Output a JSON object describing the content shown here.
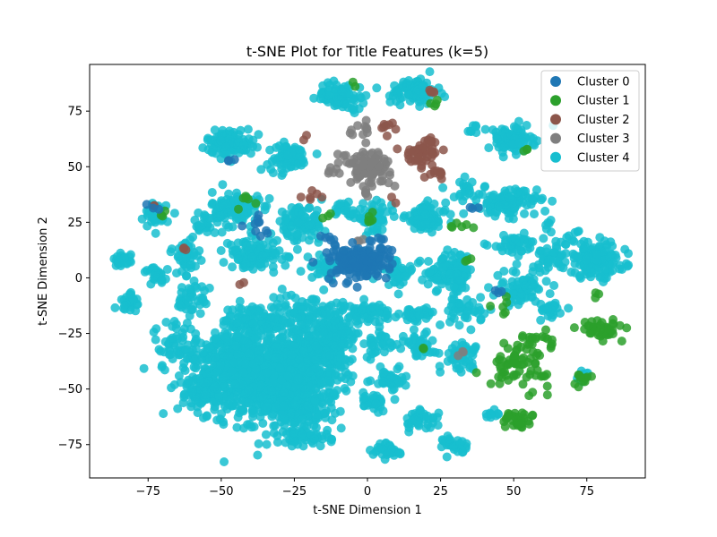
{
  "chart_data": {
    "type": "scatter",
    "title": "t-SNE Plot for Title Features (k=5)",
    "xlabel": "t-SNE Dimension 1",
    "ylabel": "t-SNE Dimension 2",
    "xlim": [
      -95,
      95
    ],
    "ylim": [
      -90,
      96
    ],
    "xticks": [
      -75,
      -50,
      -25,
      0,
      25,
      50,
      75
    ],
    "yticks": [
      -75,
      -50,
      -25,
      0,
      25,
      50,
      75
    ],
    "grid": false,
    "legend": "top-right",
    "series": [
      {
        "name": "Cluster 0",
        "color": "#1f77b4",
        "blobs": [
          {
            "cx": -3,
            "cy": 7,
            "sx": 5,
            "sy": 4,
            "n": 150
          },
          {
            "cx": -37,
            "cy": 24,
            "sx": 2,
            "sy": 3,
            "n": 10
          },
          {
            "cx": -13,
            "cy": 17,
            "sx": 2,
            "sy": 2,
            "n": 6
          },
          {
            "cx": 5,
            "cy": 15,
            "sx": 2,
            "sy": 2,
            "n": 6
          },
          {
            "cx": -46,
            "cy": 53,
            "sx": 1,
            "sy": 1,
            "n": 3
          },
          {
            "cx": -73,
            "cy": 31,
            "sx": 1,
            "sy": 1,
            "n": 3
          },
          {
            "cx": 44,
            "cy": -6,
            "sx": 1,
            "sy": 1,
            "n": 3
          },
          {
            "cx": 37,
            "cy": 31,
            "sx": 1,
            "sy": 1,
            "n": 3
          }
        ]
      },
      {
        "name": "Cluster 1",
        "color": "#2ca02c",
        "blobs": [
          {
            "cx": 52,
            "cy": -39,
            "sx": 5,
            "sy": 5,
            "n": 70
          },
          {
            "cx": 80,
            "cy": -23,
            "sx": 3.5,
            "sy": 2,
            "n": 40
          },
          {
            "cx": 51,
            "cy": -64,
            "sx": 2.5,
            "sy": 2,
            "n": 30
          },
          {
            "cx": 58,
            "cy": -28,
            "sx": 3,
            "sy": 2,
            "n": 15
          },
          {
            "cx": 73,
            "cy": -45,
            "sx": 2,
            "sy": 1.5,
            "n": 12
          },
          {
            "cx": 0,
            "cy": 26,
            "sx": 2,
            "sy": 2,
            "n": 6
          },
          {
            "cx": 32,
            "cy": 24,
            "sx": 2,
            "sy": 2,
            "n": 6
          },
          {
            "cx": -42,
            "cy": 35,
            "sx": 2,
            "sy": 2,
            "n": 6
          },
          {
            "cx": 23,
            "cy": 79,
            "sx": 2,
            "sy": 1,
            "n": 4
          },
          {
            "cx": -14,
            "cy": 28,
            "sx": 1,
            "sy": 1,
            "n": 3
          },
          {
            "cx": 55,
            "cy": 57,
            "sx": 1,
            "sy": 1,
            "n": 3
          },
          {
            "cx": -70,
            "cy": 28,
            "sx": 1,
            "sy": 1,
            "n": 3
          },
          {
            "cx": 46,
            "cy": -15,
            "sx": 2,
            "sy": 2,
            "n": 6
          },
          {
            "cx": 78,
            "cy": -8,
            "sx": 1,
            "sy": 1,
            "n": 3
          },
          {
            "cx": -5,
            "cy": 87,
            "sx": 1,
            "sy": 1,
            "n": 2
          },
          {
            "cx": 18,
            "cy": -32,
            "sx": 1,
            "sy": 1,
            "n": 2
          },
          {
            "cx": 34,
            "cy": 8,
            "sx": 1,
            "sy": 1,
            "n": 3
          }
        ]
      },
      {
        "name": "Cluster 2",
        "color": "#8c564b",
        "blobs": [
          {
            "cx": 19,
            "cy": 57,
            "sx": 3,
            "sy": 3,
            "n": 50
          },
          {
            "cx": 8,
            "cy": 68,
            "sx": 1.5,
            "sy": 1.5,
            "n": 8
          },
          {
            "cx": 24,
            "cy": 48,
            "sx": 2,
            "sy": 2,
            "n": 10
          },
          {
            "cx": 22,
            "cy": 84,
            "sx": 1.5,
            "sy": 1,
            "n": 5
          },
          {
            "cx": -18,
            "cy": 37,
            "sx": 2,
            "sy": 1.5,
            "n": 6
          },
          {
            "cx": -62,
            "cy": 14,
            "sx": 1,
            "sy": 1,
            "n": 3
          },
          {
            "cx": -73,
            "cy": 32,
            "sx": 1,
            "sy": 1,
            "n": 2
          },
          {
            "cx": -43,
            "cy": -3,
            "sx": 1,
            "sy": 1,
            "n": 2
          },
          {
            "cx": -22,
            "cy": 64,
            "sx": 1,
            "sy": 1,
            "n": 2
          },
          {
            "cx": 9,
            "cy": 35,
            "sx": 1,
            "sy": 1,
            "n": 2
          }
        ]
      },
      {
        "name": "Cluster 3",
        "color": "#7f7f7f",
        "blobs": [
          {
            "cx": 0,
            "cy": 50,
            "sx": 4,
            "sy": 3.5,
            "n": 90
          },
          {
            "cx": -2,
            "cy": 67,
            "sx": 2,
            "sy": 1.5,
            "n": 10
          },
          {
            "cx": -11,
            "cy": 48,
            "sx": 1.5,
            "sy": 1.5,
            "n": 6
          },
          {
            "cx": -1,
            "cy": 39,
            "sx": 1.5,
            "sy": 1.5,
            "n": 6
          },
          {
            "cx": -3,
            "cy": 17,
            "sx": 1,
            "sy": 1,
            "n": 3
          },
          {
            "cx": 32,
            "cy": -33,
            "sx": 1,
            "sy": 1,
            "n": 3
          }
        ]
      },
      {
        "name": "Cluster 4",
        "color": "#17becf",
        "blobs": [
          {
            "cx": -32,
            "cy": -45,
            "sx": 11,
            "sy": 9,
            "n": 900
          },
          {
            "cx": -45,
            "cy": -35,
            "sx": 6,
            "sy": 5,
            "n": 200
          },
          {
            "cx": -15,
            "cy": -30,
            "sx": 6,
            "sy": 6,
            "n": 200
          },
          {
            "cx": -25,
            "cy": -60,
            "sx": 7,
            "sy": 6,
            "n": 150
          },
          {
            "cx": -55,
            "cy": -50,
            "sx": 5,
            "sy": 6,
            "n": 120
          },
          {
            "cx": -38,
            "cy": -20,
            "sx": 6,
            "sy": 4,
            "n": 120
          },
          {
            "cx": -20,
            "cy": -15,
            "sx": 8,
            "sy": 4,
            "n": 90
          },
          {
            "cx": -65,
            "cy": -30,
            "sx": 4,
            "sy": 6,
            "n": 60
          },
          {
            "cx": -45,
            "cy": 31,
            "sx": 4,
            "sy": 4,
            "n": 120
          },
          {
            "cx": -47,
            "cy": 61,
            "sx": 4,
            "sy": 3,
            "n": 100
          },
          {
            "cx": -27,
            "cy": 54,
            "sx": 3.5,
            "sy": 3,
            "n": 90
          },
          {
            "cx": -9,
            "cy": 82,
            "sx": 4,
            "sy": 3,
            "n": 80
          },
          {
            "cx": 16,
            "cy": 84,
            "sx": 4,
            "sy": 3,
            "n": 80
          },
          {
            "cx": 49,
            "cy": 62,
            "sx": 4,
            "sy": 3,
            "n": 100
          },
          {
            "cx": 48,
            "cy": 34,
            "sx": 5,
            "sy": 3,
            "n": 110
          },
          {
            "cx": 78,
            "cy": 8,
            "sx": 5,
            "sy": 4,
            "n": 160
          },
          {
            "cx": 20,
            "cy": 27,
            "sx": 3.5,
            "sy": 3,
            "n": 90
          },
          {
            "cx": 2,
            "cy": 27,
            "sx": 3,
            "sy": 3,
            "n": 60
          },
          {
            "cx": -23,
            "cy": 24,
            "sx": 4,
            "sy": 4,
            "n": 100
          },
          {
            "cx": -41,
            "cy": 10,
            "sx": 4,
            "sy": 3,
            "n": 70
          },
          {
            "cx": 28,
            "cy": 3,
            "sx": 4,
            "sy": 4,
            "n": 90
          },
          {
            "cx": 10,
            "cy": 3,
            "sx": 3,
            "sy": 3,
            "n": 40
          },
          {
            "cx": 50,
            "cy": 15,
            "sx": 4,
            "sy": 2,
            "n": 40
          },
          {
            "cx": 52,
            "cy": -5,
            "sx": 4,
            "sy": 4,
            "n": 70
          },
          {
            "cx": 33,
            "cy": -15,
            "sx": 3,
            "sy": 3,
            "n": 40
          },
          {
            "cx": 0,
            "cy": -15,
            "sx": 4,
            "sy": 2,
            "n": 50
          },
          {
            "cx": 17,
            "cy": -17,
            "sx": 3,
            "sy": 2,
            "n": 40
          },
          {
            "cx": 32,
            "cy": -35,
            "sx": 3,
            "sy": 3,
            "n": 50
          },
          {
            "cx": 17,
            "cy": -30,
            "sx": 3,
            "sy": 3,
            "n": 40
          },
          {
            "cx": 8,
            "cy": -45,
            "sx": 2,
            "sy": 3,
            "n": 40
          },
          {
            "cx": 3,
            "cy": -56,
            "sx": 2,
            "sy": 2,
            "n": 30
          },
          {
            "cx": 18,
            "cy": -64,
            "sx": 3,
            "sy": 2,
            "n": 40
          },
          {
            "cx": 7,
            "cy": -78,
            "sx": 2.5,
            "sy": 2,
            "n": 40
          },
          {
            "cx": 30,
            "cy": -75,
            "sx": 2,
            "sy": 2,
            "n": 30
          },
          {
            "cx": -20,
            "cy": -72,
            "sx": 4,
            "sy": 2,
            "n": 40
          },
          {
            "cx": -72,
            "cy": 28,
            "sx": 2,
            "sy": 3,
            "n": 40
          },
          {
            "cx": -84,
            "cy": 8,
            "sx": 1.5,
            "sy": 1.5,
            "n": 25
          },
          {
            "cx": -72,
            "cy": 1,
            "sx": 2,
            "sy": 2,
            "n": 25
          },
          {
            "cx": -81,
            "cy": -11,
            "sx": 2,
            "sy": 2,
            "n": 25
          },
          {
            "cx": -62,
            "cy": 10,
            "sx": 2.5,
            "sy": 4,
            "n": 40
          },
          {
            "cx": -60,
            "cy": -10,
            "sx": 3,
            "sy": 4,
            "n": 40
          },
          {
            "cx": -35,
            "cy": 10,
            "sx": 4,
            "sy": 3,
            "n": 40
          },
          {
            "cx": 62,
            "cy": 8,
            "sx": 3,
            "sy": 4,
            "n": 40
          },
          {
            "cx": 63,
            "cy": -14,
            "sx": 3,
            "sy": 2,
            "n": 25
          },
          {
            "cx": -8,
            "cy": 30,
            "sx": 2,
            "sy": 2,
            "n": 20
          },
          {
            "cx": 35,
            "cy": 40,
            "sx": 3,
            "sy": 2,
            "n": 20
          },
          {
            "cx": 30,
            "cy": -2,
            "sx": 2,
            "sy": 2,
            "n": 20
          },
          {
            "cx": -15,
            "cy": 5,
            "sx": 3,
            "sy": 3,
            "n": 30
          },
          {
            "cx": -10,
            "cy": -25,
            "sx": 3,
            "sy": 3,
            "n": 30
          },
          {
            "cx": 5,
            "cy": -30,
            "sx": 3,
            "sy": 3,
            "n": 30
          },
          {
            "cx": 43,
            "cy": -62,
            "sx": 1.5,
            "sy": 1.5,
            "n": 10
          },
          {
            "cx": 73,
            "cy": -44,
            "sx": 1.5,
            "sy": 1.5,
            "n": 10
          },
          {
            "cx": 70,
            "cy": 19,
            "sx": 1.5,
            "sy": 1.5,
            "n": 8
          },
          {
            "cx": 62,
            "cy": 24,
            "sx": 1.5,
            "sy": 1.5,
            "n": 6
          },
          {
            "cx": 36,
            "cy": 66,
            "sx": 1.5,
            "sy": 1.5,
            "n": 8
          },
          {
            "cx": -56,
            "cy": 25,
            "sx": 2,
            "sy": 3,
            "n": 20
          }
        ]
      }
    ]
  }
}
